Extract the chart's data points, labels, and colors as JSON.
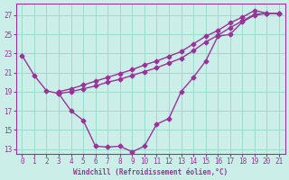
{
  "xlabel": "Windchill (Refroidissement éolien,°C)",
  "ylabel": "",
  "bg_color": "#cceee8",
  "grid_color": "#99ddcc",
  "line_color": "#993399",
  "xlim": [
    -0.5,
    21.5
  ],
  "ylim": [
    12.5,
    28.2
  ],
  "xticks": [
    0,
    1,
    2,
    3,
    4,
    5,
    6,
    7,
    8,
    9,
    10,
    11,
    12,
    13,
    14,
    15,
    16,
    17,
    18,
    19,
    20,
    21
  ],
  "yticks": [
    13,
    15,
    17,
    19,
    21,
    23,
    25,
    27
  ],
  "line1_x": [
    0,
    1,
    2,
    3,
    4,
    5,
    6,
    7,
    8,
    9,
    10,
    11,
    12,
    13,
    14,
    15,
    16,
    17,
    18,
    19,
    20,
    21
  ],
  "line1_y": [
    22.8,
    20.7,
    19.1,
    18.8,
    17.0,
    16.0,
    13.3,
    13.2,
    13.3,
    12.7,
    13.3,
    15.6,
    16.2,
    19.0,
    20.5,
    22.2,
    24.8,
    25.0,
    26.3,
    27.0,
    27.2,
    27.2
  ],
  "line2_x": [
    3,
    4,
    5,
    6,
    7,
    8,
    9,
    10,
    11,
    12,
    13,
    14,
    15,
    16,
    17,
    18,
    19,
    20,
    21
  ],
  "line2_y": [
    19.0,
    19.3,
    19.7,
    20.1,
    20.5,
    20.9,
    21.3,
    21.8,
    22.2,
    22.7,
    23.2,
    24.0,
    24.8,
    25.4,
    26.2,
    26.8,
    27.5,
    27.2,
    27.2
  ],
  "line3_x": [
    3,
    4,
    5,
    6,
    7,
    8,
    9,
    10,
    11,
    12,
    13,
    14,
    15,
    16,
    17,
    18,
    19,
    20,
    21
  ],
  "line3_y": [
    18.8,
    19.0,
    19.3,
    19.6,
    20.0,
    20.3,
    20.7,
    21.1,
    21.5,
    22.0,
    22.5,
    23.3,
    24.2,
    24.9,
    25.7,
    26.4,
    27.1,
    27.2,
    27.2
  ],
  "marker_size": 2.5,
  "linewidth": 1.0
}
